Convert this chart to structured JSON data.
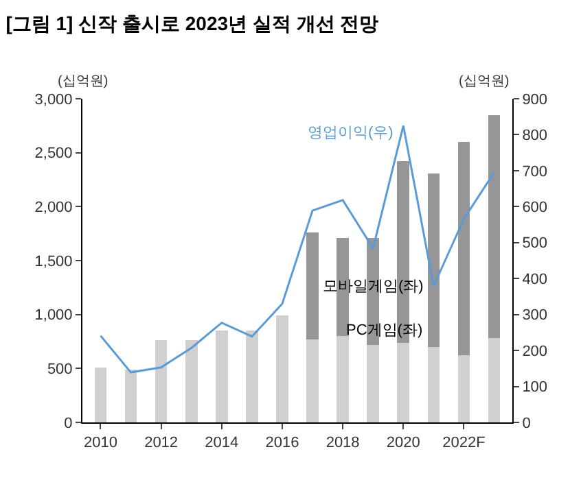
{
  "chart_data": {
    "type": "bar",
    "title": "[그림 1] 신작 출시로 2023년 실적 개선 전망",
    "ylabel": "(십억원)",
    "y2label": "(십억원)",
    "categories": [
      "2010",
      null,
      "2012",
      null,
      "2014",
      null,
      "2016",
      null,
      "2018",
      null,
      "2020",
      null,
      "2022F",
      null
    ],
    "stacked": true,
    "series": [
      {
        "name": "PC게임(좌)",
        "color": "#d0d0d0",
        "values": [
          510,
          490,
          760,
          760,
          850,
          850,
          990,
          770,
          800,
          720,
          740,
          700,
          620,
          780
        ]
      },
      {
        "name": "모바일게임(좌)",
        "color": "#969696",
        "values": [
          0,
          0,
          0,
          0,
          0,
          0,
          0,
          990,
          910,
          990,
          1680,
          1610,
          1980,
          2070
        ]
      },
      {
        "name": "영업이익(우)",
        "type": "line",
        "axis": "y2",
        "color": "#5b9bd5",
        "values": [
          241,
          139,
          153,
          207,
          277,
          239,
          330,
          589,
          618,
          484,
          825,
          379,
          566,
          695
        ]
      }
    ],
    "ylim": [
      0,
      3000
    ],
    "yticks": [
      0,
      {
        "value": 500,
        "label": "500"
      },
      {
        "value": 1000,
        "label": "1,000"
      },
      {
        "value": 1500,
        "label": "1,500"
      },
      {
        "value": 2000,
        "label": "2,000"
      },
      {
        "value": 2500,
        "label": "2,500"
      },
      {
        "value": 3000,
        "label": "3,000"
      }
    ],
    "y2lim": [
      0,
      900
    ],
    "y2ticks": [
      0,
      100,
      200,
      300,
      400,
      500,
      600,
      700,
      800,
      900
    ],
    "grid": false,
    "legend": false,
    "marker": "none",
    "line_style": "solid"
  }
}
